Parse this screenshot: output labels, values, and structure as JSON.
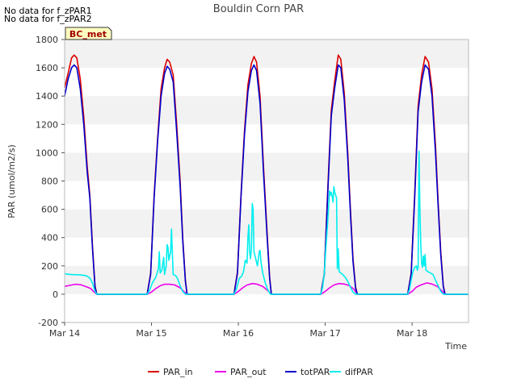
{
  "notes": [
    "No data for f_zPAR1",
    "No data for f_zPAR2"
  ],
  "station_tag": "BC_met",
  "chart_data": {
    "type": "line",
    "title": "Bouldin Corn PAR",
    "xlabel": "Time",
    "ylabel": "PAR (umol/m2/s)",
    "ylim": [
      -200,
      1800
    ],
    "yticks": [
      -200,
      0,
      200,
      400,
      600,
      800,
      1000,
      1200,
      1400,
      1600,
      1800
    ],
    "xlim": [
      14.0,
      18.65
    ],
    "xticks": [
      14,
      15,
      16,
      17,
      18
    ],
    "xtick_labels": [
      "Mar 14",
      "Mar 15",
      "Mar 16",
      "Mar 17",
      "Mar 18"
    ],
    "grid": "alternating horizontal bands",
    "legend_position": "bottom",
    "series": [
      {
        "name": "PAR_in",
        "color": "#dd0000",
        "points": [
          [
            14.0,
            1460
          ],
          [
            14.04,
            1560
          ],
          [
            14.08,
            1670
          ],
          [
            14.11,
            1690
          ],
          [
            14.14,
            1670
          ],
          [
            14.18,
            1520
          ],
          [
            14.22,
            1250
          ],
          [
            14.26,
            900
          ],
          [
            14.29,
            700
          ],
          [
            14.32,
            350
          ],
          [
            14.35,
            60
          ],
          [
            14.37,
            0
          ],
          [
            14.95,
            0
          ],
          [
            14.99,
            150
          ],
          [
            15.03,
            700
          ],
          [
            15.07,
            1100
          ],
          [
            15.11,
            1450
          ],
          [
            15.15,
            1600
          ],
          [
            15.18,
            1660
          ],
          [
            15.21,
            1640
          ],
          [
            15.25,
            1550
          ],
          [
            15.29,
            1200
          ],
          [
            15.33,
            800
          ],
          [
            15.36,
            400
          ],
          [
            15.39,
            100
          ],
          [
            15.41,
            0
          ],
          [
            15.95,
            0
          ],
          [
            15.99,
            160
          ],
          [
            16.03,
            700
          ],
          [
            16.07,
            1150
          ],
          [
            16.11,
            1480
          ],
          [
            16.15,
            1630
          ],
          [
            16.18,
            1680
          ],
          [
            16.21,
            1640
          ],
          [
            16.25,
            1400
          ],
          [
            16.29,
            900
          ],
          [
            16.33,
            450
          ],
          [
            16.36,
            120
          ],
          [
            16.38,
            0
          ],
          [
            16.95,
            0
          ],
          [
            16.99,
            150
          ],
          [
            17.03,
            750
          ],
          [
            17.07,
            1300
          ],
          [
            17.11,
            1510
          ],
          [
            17.15,
            1690
          ],
          [
            17.18,
            1660
          ],
          [
            17.22,
            1420
          ],
          [
            17.26,
            1000
          ],
          [
            17.29,
            600
          ],
          [
            17.32,
            250
          ],
          [
            17.35,
            50
          ],
          [
            17.37,
            0
          ],
          [
            17.95,
            0
          ],
          [
            17.99,
            150
          ],
          [
            18.03,
            700
          ],
          [
            18.07,
            1330
          ],
          [
            18.11,
            1550
          ],
          [
            18.15,
            1680
          ],
          [
            18.19,
            1640
          ],
          [
            18.23,
            1450
          ],
          [
            18.27,
            1050
          ],
          [
            18.3,
            650
          ],
          [
            18.33,
            300
          ],
          [
            18.36,
            60
          ],
          [
            18.38,
            0
          ],
          [
            18.65,
            0
          ]
        ]
      },
      {
        "name": "PAR_out",
        "color": "#ee00ee",
        "points": [
          [
            14.0,
            55
          ],
          [
            14.04,
            60
          ],
          [
            14.08,
            65
          ],
          [
            14.12,
            70
          ],
          [
            14.18,
            68
          ],
          [
            14.24,
            55
          ],
          [
            14.3,
            40
          ],
          [
            14.34,
            15
          ],
          [
            14.37,
            0
          ],
          [
            14.95,
            0
          ],
          [
            15.0,
            15
          ],
          [
            15.05,
            40
          ],
          [
            15.1,
            60
          ],
          [
            15.15,
            70
          ],
          [
            15.21,
            70
          ],
          [
            15.27,
            65
          ],
          [
            15.33,
            45
          ],
          [
            15.38,
            15
          ],
          [
            15.41,
            0
          ],
          [
            15.95,
            0
          ],
          [
            16.0,
            20
          ],
          [
            16.05,
            45
          ],
          [
            16.1,
            65
          ],
          [
            16.16,
            75
          ],
          [
            16.22,
            70
          ],
          [
            16.28,
            55
          ],
          [
            16.33,
            30
          ],
          [
            16.38,
            0
          ],
          [
            16.95,
            0
          ],
          [
            17.0,
            20
          ],
          [
            17.05,
            45
          ],
          [
            17.1,
            65
          ],
          [
            17.16,
            75
          ],
          [
            17.22,
            72
          ],
          [
            17.28,
            60
          ],
          [
            17.33,
            35
          ],
          [
            17.37,
            0
          ],
          [
            17.95,
            0
          ],
          [
            18.0,
            20
          ],
          [
            18.05,
            50
          ],
          [
            18.1,
            65
          ],
          [
            18.17,
            80
          ],
          [
            18.23,
            72
          ],
          [
            18.29,
            55
          ],
          [
            18.34,
            25
          ],
          [
            18.38,
            0
          ],
          [
            18.65,
            0
          ]
        ]
      },
      {
        "name": "totPAR",
        "color": "#0000cc",
        "points": [
          [
            14.0,
            1400
          ],
          [
            14.04,
            1520
          ],
          [
            14.08,
            1600
          ],
          [
            14.11,
            1620
          ],
          [
            14.14,
            1600
          ],
          [
            14.18,
            1450
          ],
          [
            14.22,
            1200
          ],
          [
            14.26,
            860
          ],
          [
            14.29,
            680
          ],
          [
            14.32,
            330
          ],
          [
            14.35,
            50
          ],
          [
            14.37,
            0
          ],
          [
            14.95,
            0
          ],
          [
            14.99,
            140
          ],
          [
            15.03,
            680
          ],
          [
            15.07,
            1080
          ],
          [
            15.11,
            1400
          ],
          [
            15.15,
            1560
          ],
          [
            15.18,
            1610
          ],
          [
            15.21,
            1590
          ],
          [
            15.25,
            1500
          ],
          [
            15.29,
            1150
          ],
          [
            15.33,
            760
          ],
          [
            15.36,
            380
          ],
          [
            15.39,
            90
          ],
          [
            15.41,
            0
          ],
          [
            15.95,
            0
          ],
          [
            15.99,
            150
          ],
          [
            16.03,
            680
          ],
          [
            16.07,
            1120
          ],
          [
            16.11,
            1430
          ],
          [
            16.15,
            1580
          ],
          [
            16.18,
            1620
          ],
          [
            16.21,
            1580
          ],
          [
            16.25,
            1350
          ],
          [
            16.29,
            860
          ],
          [
            16.33,
            420
          ],
          [
            16.36,
            110
          ],
          [
            16.38,
            0
          ],
          [
            16.95,
            0
          ],
          [
            16.99,
            140
          ],
          [
            17.03,
            720
          ],
          [
            17.07,
            1260
          ],
          [
            17.11,
            1460
          ],
          [
            17.15,
            1620
          ],
          [
            17.18,
            1600
          ],
          [
            17.22,
            1370
          ],
          [
            17.26,
            960
          ],
          [
            17.29,
            570
          ],
          [
            17.32,
            230
          ],
          [
            17.35,
            40
          ],
          [
            17.37,
            0
          ],
          [
            17.95,
            0
          ],
          [
            17.99,
            140
          ],
          [
            18.03,
            670
          ],
          [
            18.07,
            1290
          ],
          [
            18.11,
            1500
          ],
          [
            18.15,
            1620
          ],
          [
            18.19,
            1590
          ],
          [
            18.23,
            1400
          ],
          [
            18.27,
            1000
          ],
          [
            18.3,
            620
          ],
          [
            18.33,
            280
          ],
          [
            18.36,
            50
          ],
          [
            18.38,
            0
          ],
          [
            18.65,
            0
          ]
        ]
      },
      {
        "name": "difPAR",
        "color": "#00eeee",
        "points": [
          [
            14.0,
            145
          ],
          [
            14.05,
            140
          ],
          [
            14.1,
            138
          ],
          [
            14.15,
            138
          ],
          [
            14.2,
            135
          ],
          [
            14.25,
            130
          ],
          [
            14.29,
            115
          ],
          [
            14.32,
            80
          ],
          [
            14.35,
            20
          ],
          [
            14.37,
            0
          ],
          [
            14.95,
            0
          ],
          [
            14.98,
            30
          ],
          [
            15.01,
            80
          ],
          [
            15.05,
            120
          ],
          [
            15.08,
            180
          ],
          [
            15.09,
            300
          ],
          [
            15.1,
            150
          ],
          [
            15.12,
            170
          ],
          [
            15.14,
            260
          ],
          [
            15.15,
            140
          ],
          [
            15.17,
            200
          ],
          [
            15.18,
            350
          ],
          [
            15.19,
            330
          ],
          [
            15.2,
            240
          ],
          [
            15.22,
            300
          ],
          [
            15.23,
            460
          ],
          [
            15.24,
            300
          ],
          [
            15.25,
            140
          ],
          [
            15.28,
            130
          ],
          [
            15.3,
            110
          ],
          [
            15.33,
            60
          ],
          [
            15.36,
            20
          ],
          [
            15.39,
            0
          ],
          [
            15.95,
            0
          ],
          [
            15.98,
            40
          ],
          [
            16.01,
            110
          ],
          [
            16.04,
            130
          ],
          [
            16.06,
            160
          ],
          [
            16.08,
            240
          ],
          [
            16.1,
            220
          ],
          [
            16.11,
            400
          ],
          [
            16.12,
            490
          ],
          [
            16.13,
            300
          ],
          [
            16.14,
            250
          ],
          [
            16.15,
            320
          ],
          [
            16.16,
            640
          ],
          [
            16.17,
            600
          ],
          [
            16.18,
            300
          ],
          [
            16.2,
            250
          ],
          [
            16.22,
            200
          ],
          [
            16.24,
            300
          ],
          [
            16.25,
            310
          ],
          [
            16.26,
            230
          ],
          [
            16.28,
            150
          ],
          [
            16.31,
            80
          ],
          [
            16.34,
            30
          ],
          [
            16.37,
            0
          ],
          [
            16.95,
            0
          ],
          [
            16.97,
            50
          ],
          [
            16.99,
            150
          ],
          [
            17.01,
            350
          ],
          [
            17.03,
            520
          ],
          [
            17.05,
            730
          ],
          [
            17.06,
            700
          ],
          [
            17.07,
            720
          ],
          [
            17.08,
            690
          ],
          [
            17.09,
            650
          ],
          [
            17.1,
            760
          ],
          [
            17.11,
            720
          ],
          [
            17.12,
            700
          ],
          [
            17.13,
            680
          ],
          [
            17.14,
            180
          ],
          [
            17.15,
            320
          ],
          [
            17.16,
            160
          ],
          [
            17.18,
            150
          ],
          [
            17.2,
            140
          ],
          [
            17.23,
            120
          ],
          [
            17.26,
            90
          ],
          [
            17.29,
            50
          ],
          [
            17.32,
            15
          ],
          [
            17.35,
            0
          ],
          [
            17.95,
            0
          ],
          [
            17.97,
            30
          ],
          [
            17.99,
            100
          ],
          [
            18.01,
            160
          ],
          [
            18.03,
            190
          ],
          [
            18.05,
            200
          ],
          [
            18.06,
            170
          ],
          [
            18.07,
            190
          ],
          [
            18.08,
            1010
          ],
          [
            18.09,
            600
          ],
          [
            18.1,
            350
          ],
          [
            18.11,
            220
          ],
          [
            18.12,
            190
          ],
          [
            18.13,
            270
          ],
          [
            18.14,
            200
          ],
          [
            18.15,
            280
          ],
          [
            18.16,
            170
          ],
          [
            18.18,
            160
          ],
          [
            18.21,
            150
          ],
          [
            18.24,
            140
          ],
          [
            18.27,
            100
          ],
          [
            18.3,
            60
          ],
          [
            18.33,
            20
          ],
          [
            18.36,
            0
          ],
          [
            18.65,
            0
          ]
        ]
      }
    ]
  }
}
